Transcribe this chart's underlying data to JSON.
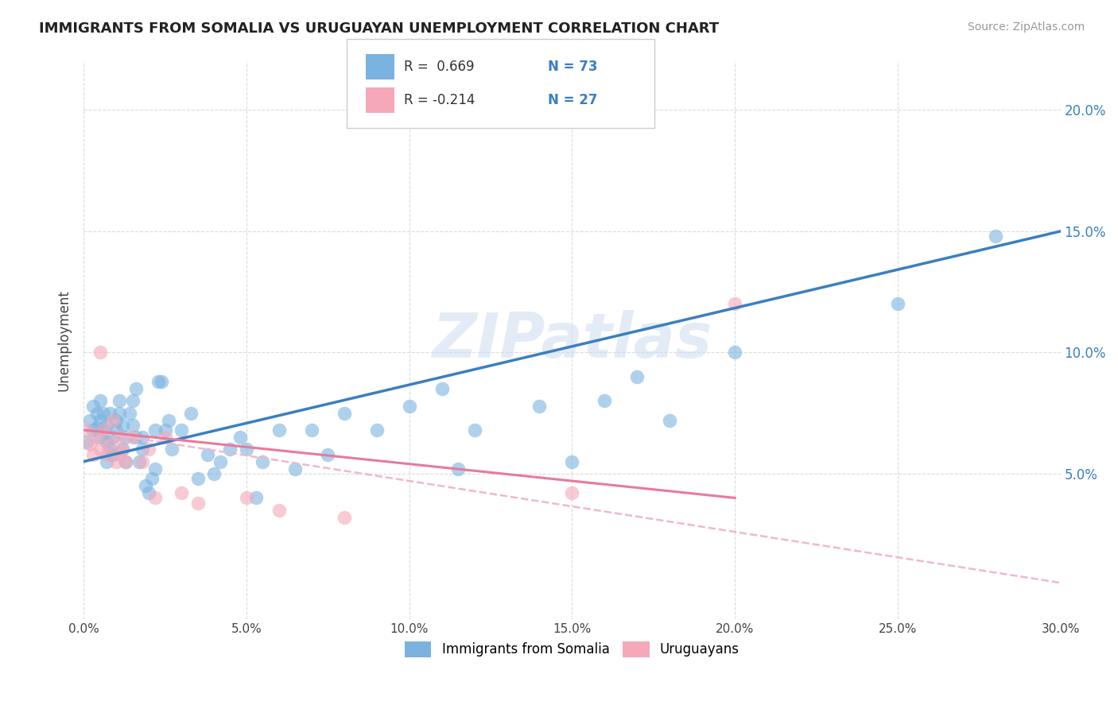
{
  "title": "IMMIGRANTS FROM SOMALIA VS URUGUAYAN UNEMPLOYMENT CORRELATION CHART",
  "source": "Source: ZipAtlas.com",
  "ylabel": "Unemployment",
  "xlim": [
    0.0,
    0.3
  ],
  "ylim": [
    -0.01,
    0.22
  ],
  "yticks": [
    0.05,
    0.1,
    0.15,
    0.2
  ],
  "xticks": [
    0.0,
    0.05,
    0.1,
    0.15,
    0.2,
    0.25,
    0.3
  ],
  "blue_color": "#7ab3e0",
  "pink_color": "#f4a8b8",
  "blue_line_color": "#3a7fc1",
  "pink_line_color": "#e87a9a",
  "pink_dashed_line_color": "#f0b8c8",
  "watermark": "ZIPatlas",
  "legend_R_blue": "R =  0.669",
  "legend_N_blue": "N = 73",
  "legend_R_pink": "R = -0.214",
  "legend_N_pink": "N = 27",
  "blue_scatter_x": [
    0.001,
    0.002,
    0.003,
    0.003,
    0.004,
    0.004,
    0.005,
    0.005,
    0.005,
    0.006,
    0.006,
    0.007,
    0.007,
    0.007,
    0.008,
    0.008,
    0.009,
    0.009,
    0.01,
    0.01,
    0.011,
    0.011,
    0.012,
    0.012,
    0.013,
    0.013,
    0.014,
    0.015,
    0.015,
    0.016,
    0.016,
    0.017,
    0.018,
    0.018,
    0.019,
    0.02,
    0.021,
    0.022,
    0.022,
    0.023,
    0.024,
    0.025,
    0.026,
    0.027,
    0.03,
    0.033,
    0.035,
    0.038,
    0.04,
    0.042,
    0.045,
    0.048,
    0.05,
    0.053,
    0.055,
    0.06,
    0.065,
    0.07,
    0.075,
    0.08,
    0.09,
    0.1,
    0.11,
    0.115,
    0.12,
    0.14,
    0.15,
    0.16,
    0.17,
    0.18,
    0.2,
    0.25,
    0.28
  ],
  "blue_scatter_y": [
    0.063,
    0.072,
    0.068,
    0.078,
    0.069,
    0.075,
    0.072,
    0.065,
    0.08,
    0.075,
    0.068,
    0.063,
    0.055,
    0.07,
    0.06,
    0.075,
    0.065,
    0.058,
    0.072,
    0.068,
    0.08,
    0.075,
    0.06,
    0.07,
    0.065,
    0.055,
    0.075,
    0.08,
    0.07,
    0.085,
    0.065,
    0.055,
    0.06,
    0.065,
    0.045,
    0.042,
    0.048,
    0.052,
    0.068,
    0.088,
    0.088,
    0.068,
    0.072,
    0.06,
    0.068,
    0.075,
    0.048,
    0.058,
    0.05,
    0.055,
    0.06,
    0.065,
    0.06,
    0.04,
    0.055,
    0.068,
    0.052,
    0.068,
    0.058,
    0.075,
    0.068,
    0.078,
    0.085,
    0.052,
    0.068,
    0.078,
    0.055,
    0.08,
    0.09,
    0.072,
    0.1,
    0.12,
    0.148
  ],
  "pink_scatter_x": [
    0.001,
    0.002,
    0.003,
    0.004,
    0.005,
    0.005,
    0.006,
    0.007,
    0.008,
    0.009,
    0.01,
    0.011,
    0.011,
    0.012,
    0.013,
    0.015,
    0.018,
    0.02,
    0.022,
    0.025,
    0.03,
    0.035,
    0.05,
    0.06,
    0.08,
    0.15,
    0.2
  ],
  "pink_scatter_y": [
    0.068,
    0.062,
    0.058,
    0.065,
    0.06,
    0.1,
    0.068,
    0.058,
    0.062,
    0.072,
    0.055,
    0.058,
    0.065,
    0.06,
    0.055,
    0.065,
    0.055,
    0.06,
    0.04,
    0.065,
    0.042,
    0.038,
    0.04,
    0.035,
    0.032,
    0.042,
    0.12
  ],
  "blue_line_x": [
    0.0,
    0.3
  ],
  "blue_line_y": [
    0.055,
    0.15
  ],
  "pink_line_x": [
    0.0,
    0.2
  ],
  "pink_line_y": [
    0.068,
    0.04
  ],
  "pink_dashed_line_x": [
    0.0,
    0.3
  ],
  "pink_dashed_line_y": [
    0.068,
    0.005
  ],
  "background_color": "#ffffff",
  "grid_color": "#cccccc"
}
